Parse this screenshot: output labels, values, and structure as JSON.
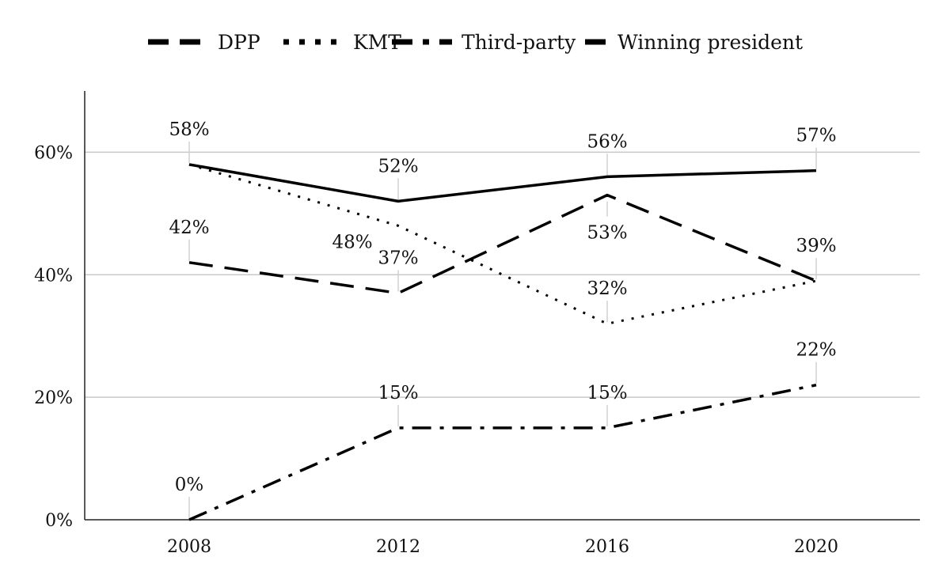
{
  "chart_data": {
    "type": "line",
    "title": "",
    "xlabel": "",
    "ylabel": "",
    "categories": [
      "2008",
      "2012",
      "2016",
      "2020"
    ],
    "ylim": [
      0,
      70
    ],
    "yticks": [
      0,
      20,
      40,
      60
    ],
    "ytick_labels": [
      "0%",
      "20%",
      "40%",
      "60%"
    ],
    "grid": "horizontal",
    "legend_position": "top",
    "series": [
      {
        "name": "DPP",
        "values": [
          42,
          37,
          53,
          39
        ],
        "labels": [
          "42%",
          "37%",
          "53%",
          "39%"
        ],
        "line_style": "dashed",
        "color": "#000000"
      },
      {
        "name": "KMT",
        "values": [
          58,
          48,
          32,
          39
        ],
        "labels": [
          "58%",
          "48%",
          "32%",
          "39%"
        ],
        "line_style": "dotted",
        "color": "#000000"
      },
      {
        "name": "Third-party",
        "values": [
          0,
          15,
          15,
          22
        ],
        "labels": [
          "0%",
          "15%",
          "15%",
          "22%"
        ],
        "line_style": "dash-dot",
        "color": "#000000"
      },
      {
        "name": "Winning president",
        "values": [
          58,
          52,
          56,
          57
        ],
        "labels": [
          "58%",
          "52%",
          "56%",
          "57%"
        ],
        "line_style": "solid",
        "color": "#000000"
      }
    ]
  }
}
